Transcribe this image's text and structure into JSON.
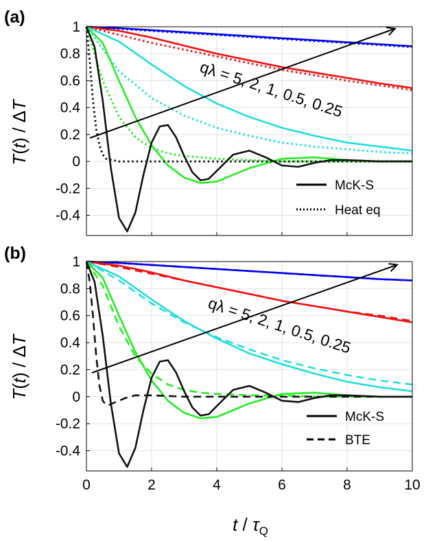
{
  "chart_data": [
    {
      "panel_label": "(a)",
      "type": "line",
      "ylabel": "T(t) / ΔT",
      "xlim": [
        0,
        10
      ],
      "ylim": [
        -0.55,
        1.0
      ],
      "xticks": [
        0,
        2,
        4,
        6,
        8,
        10
      ],
      "xtick_labels": [
        "",
        "",
        "",
        "",
        "",
        ""
      ],
      "yticks": [
        1,
        0.8,
        0.6,
        0.4,
        0.2,
        0,
        -0.2,
        -0.4
      ],
      "ytick_labels": [
        "1",
        "0.8",
        "0.6",
        "0.4",
        "0.2",
        "0",
        "-0.2",
        "-0.4"
      ],
      "grid": true,
      "legend_position": "bottom-right",
      "legend": [
        {
          "label": "McK-S",
          "style": "solid"
        },
        {
          "label": "Heat eq",
          "style": "dotted"
        }
      ],
      "annotation": "qλ = 5, 2, 1, 0.5, 0.25",
      "series": [
        {
          "q_lambda": 0.25,
          "color": "#0000ee",
          "style": "solid",
          "x": [
            0,
            1,
            2,
            3,
            4,
            5,
            6,
            7,
            8,
            9,
            10
          ],
          "y": [
            1,
            0.99,
            0.975,
            0.96,
            0.945,
            0.93,
            0.915,
            0.9,
            0.885,
            0.87,
            0.855
          ]
        },
        {
          "q_lambda": 0.25,
          "color": "#0000ee",
          "style": "dotted",
          "x": [
            0,
            1,
            2,
            3,
            4,
            5,
            6,
            7,
            8,
            9,
            10
          ],
          "y": [
            1,
            0.985,
            0.97,
            0.955,
            0.94,
            0.925,
            0.91,
            0.895,
            0.88,
            0.865,
            0.85
          ]
        },
        {
          "q_lambda": 0.5,
          "color": "#ee1111",
          "style": "solid",
          "x": [
            0,
            1,
            2,
            3,
            4,
            5,
            6,
            7,
            8,
            9,
            10
          ],
          "y": [
            1,
            0.97,
            0.92,
            0.86,
            0.8,
            0.75,
            0.7,
            0.66,
            0.62,
            0.58,
            0.545
          ]
        },
        {
          "q_lambda": 0.5,
          "color": "#ee1111",
          "style": "dotted",
          "x": [
            0,
            1,
            2,
            3,
            4,
            5,
            6,
            7,
            8,
            9,
            10
          ],
          "y": [
            1,
            0.94,
            0.88,
            0.83,
            0.78,
            0.73,
            0.68,
            0.64,
            0.6,
            0.565,
            0.53
          ]
        },
        {
          "q_lambda": 1,
          "color": "#22dddd",
          "style": "solid",
          "x": [
            0,
            1,
            2,
            3,
            4,
            5,
            6,
            7,
            8,
            9,
            10
          ],
          "y": [
            1,
            0.89,
            0.72,
            0.56,
            0.43,
            0.33,
            0.25,
            0.19,
            0.14,
            0.11,
            0.08
          ]
        },
        {
          "q_lambda": 1,
          "color": "#22dddd",
          "style": "dotted",
          "x": [
            0,
            1,
            2,
            3,
            4,
            5,
            6,
            7,
            8,
            9,
            10
          ],
          "y": [
            1,
            0.67,
            0.47,
            0.34,
            0.25,
            0.19,
            0.14,
            0.11,
            0.09,
            0.07,
            0.06
          ]
        },
        {
          "q_lambda": 2,
          "color": "#22ee22",
          "style": "solid",
          "x": [
            0,
            0.5,
            1,
            1.5,
            2,
            2.5,
            3,
            3.5,
            4,
            4.5,
            5,
            6,
            7,
            8,
            9,
            10
          ],
          "y": [
            1,
            0.88,
            0.6,
            0.33,
            0.12,
            -0.03,
            -0.12,
            -0.16,
            -0.15,
            -0.1,
            -0.05,
            0.02,
            0.03,
            0.01,
            0,
            0
          ]
        },
        {
          "q_lambda": 2,
          "color": "#22ee22",
          "style": "dotted",
          "x": [
            0,
            0.5,
            1,
            1.5,
            2,
            2.5,
            3,
            4,
            5,
            6,
            7,
            8,
            9,
            10
          ],
          "y": [
            1,
            0.6,
            0.33,
            0.18,
            0.1,
            0.06,
            0.04,
            0.02,
            0.01,
            0,
            0,
            0,
            0,
            0
          ]
        },
        {
          "q_lambda": 5,
          "color": "#111111",
          "style": "solid",
          "x": [
            0,
            0.25,
            0.5,
            0.75,
            1,
            1.25,
            1.5,
            1.75,
            2,
            2.25,
            2.5,
            2.75,
            3,
            3.25,
            3.5,
            3.75,
            4,
            4.5,
            5,
            5.5,
            6,
            6.5,
            7,
            7.5,
            8,
            9,
            10
          ],
          "y": [
            1,
            0.85,
            0.45,
            -0.05,
            -0.42,
            -0.52,
            -0.38,
            -0.1,
            0.14,
            0.26,
            0.27,
            0.18,
            0.04,
            -0.08,
            -0.14,
            -0.13,
            -0.07,
            0.05,
            0.08,
            0.03,
            -0.03,
            -0.04,
            -0.01,
            0.01,
            0.01,
            0,
            0
          ]
        },
        {
          "q_lambda": 5,
          "color": "#111111",
          "style": "dotted",
          "x": [
            0,
            0.1,
            0.2,
            0.3,
            0.4,
            0.5,
            0.6,
            0.8,
            1,
            2,
            4,
            6,
            8,
            10
          ],
          "y": [
            1,
            0.75,
            0.45,
            0.24,
            0.12,
            0.05,
            0.02,
            0.01,
            0,
            0,
            0,
            0,
            0,
            0
          ]
        }
      ]
    },
    {
      "panel_label": "(b)",
      "type": "line",
      "ylabel": "T(t) / ΔT",
      "xlabel": "t / τQ",
      "xlim": [
        0,
        10
      ],
      "ylim": [
        -0.55,
        1.0
      ],
      "xticks": [
        0,
        2,
        4,
        6,
        8,
        10
      ],
      "xtick_labels": [
        "0",
        "2",
        "4",
        "6",
        "8",
        "10"
      ],
      "yticks": [
        1,
        0.8,
        0.6,
        0.4,
        0.2,
        0,
        -0.2,
        -0.4
      ],
      "ytick_labels": [
        "1",
        "0.8",
        "0.6",
        "0.4",
        "0.2",
        "0",
        "-0.2",
        "-0.4"
      ],
      "grid": true,
      "legend_position": "bottom-right",
      "legend": [
        {
          "label": "McK-S",
          "style": "solid"
        },
        {
          "label": "BTE",
          "style": "dashed"
        }
      ],
      "annotation": "qλ = 5, 2, 1, 0.5, 0.25",
      "series": [
        {
          "q_lambda": 0.25,
          "color": "#0000ee",
          "style": "solid",
          "x": [
            0,
            1,
            2,
            3,
            4,
            5,
            6,
            7,
            8,
            9,
            10
          ],
          "y": [
            1,
            0.99,
            0.975,
            0.96,
            0.945,
            0.93,
            0.915,
            0.9,
            0.885,
            0.87,
            0.86
          ]
        },
        {
          "q_lambda": 0.25,
          "color": "#0000ee",
          "style": "dashed",
          "x": [
            0,
            1,
            2,
            3,
            4,
            5,
            6,
            7,
            8,
            9,
            10
          ],
          "y": [
            1,
            0.99,
            0.975,
            0.96,
            0.945,
            0.93,
            0.915,
            0.9,
            0.885,
            0.87,
            0.86
          ]
        },
        {
          "q_lambda": 0.5,
          "color": "#ee1111",
          "style": "solid",
          "x": [
            0,
            1,
            2,
            3,
            4,
            5,
            6,
            7,
            8,
            9,
            10
          ],
          "y": [
            1,
            0.97,
            0.92,
            0.86,
            0.81,
            0.76,
            0.71,
            0.67,
            0.63,
            0.59,
            0.55
          ]
        },
        {
          "q_lambda": 0.5,
          "color": "#ee1111",
          "style": "dashed",
          "x": [
            0,
            1,
            2,
            3,
            4,
            5,
            6,
            7,
            8,
            9,
            10
          ],
          "y": [
            1,
            0.96,
            0.91,
            0.86,
            0.81,
            0.76,
            0.71,
            0.67,
            0.63,
            0.6,
            0.56
          ]
        },
        {
          "q_lambda": 1,
          "color": "#22dddd",
          "style": "solid",
          "x": [
            0,
            1,
            2,
            3,
            4,
            5,
            6,
            7,
            8,
            9,
            10
          ],
          "y": [
            1,
            0.89,
            0.72,
            0.56,
            0.43,
            0.32,
            0.24,
            0.17,
            0.11,
            0.07,
            0.04
          ]
        },
        {
          "q_lambda": 1,
          "color": "#22dddd",
          "style": "dashed",
          "x": [
            0,
            1,
            2,
            3,
            4,
            5,
            6,
            7,
            8,
            9,
            10
          ],
          "y": [
            1,
            0.86,
            0.69,
            0.55,
            0.44,
            0.35,
            0.27,
            0.21,
            0.16,
            0.12,
            0.09
          ]
        },
        {
          "q_lambda": 2,
          "color": "#22ee22",
          "style": "solid",
          "x": [
            0,
            0.5,
            1,
            1.5,
            2,
            2.5,
            3,
            3.5,
            4,
            4.5,
            5,
            6,
            7,
            8,
            9,
            10
          ],
          "y": [
            1,
            0.88,
            0.6,
            0.33,
            0.12,
            -0.03,
            -0.12,
            -0.16,
            -0.15,
            -0.1,
            -0.05,
            0.02,
            0.03,
            0.01,
            0,
            0
          ]
        },
        {
          "q_lambda": 2,
          "color": "#22ee22",
          "style": "dashed",
          "x": [
            0,
            0.5,
            1,
            1.5,
            2,
            2.5,
            3,
            3.5,
            4,
            5,
            6,
            7,
            8,
            9,
            10
          ],
          "y": [
            1,
            0.82,
            0.52,
            0.3,
            0.17,
            0.09,
            0.05,
            0.03,
            0.02,
            0.01,
            0.01,
            0,
            0,
            0,
            0
          ]
        },
        {
          "q_lambda": 5,
          "color": "#111111",
          "style": "solid",
          "x": [
            0,
            0.25,
            0.5,
            0.75,
            1,
            1.25,
            1.5,
            1.75,
            2,
            2.25,
            2.5,
            2.75,
            3,
            3.25,
            3.5,
            3.75,
            4,
            4.5,
            5,
            5.5,
            6,
            6.5,
            7,
            7.5,
            8,
            9,
            10
          ],
          "y": [
            1,
            0.85,
            0.45,
            -0.05,
            -0.42,
            -0.52,
            -0.38,
            -0.1,
            0.14,
            0.26,
            0.27,
            0.18,
            0.04,
            -0.08,
            -0.14,
            -0.13,
            -0.07,
            0.05,
            0.08,
            0.03,
            -0.03,
            -0.04,
            -0.01,
            0.01,
            0.01,
            0,
            0
          ]
        },
        {
          "q_lambda": 5,
          "color": "#111111",
          "style": "dashed",
          "x": [
            0,
            0.1,
            0.2,
            0.3,
            0.4,
            0.5,
            0.6,
            0.7,
            0.8,
            1,
            1.2,
            1.5,
            2,
            3,
            4,
            5,
            6,
            8,
            10
          ],
          "y": [
            1,
            0.85,
            0.6,
            0.3,
            0.08,
            -0.03,
            -0.06,
            -0.06,
            -0.05,
            -0.03,
            -0.01,
            0.01,
            0.01,
            0,
            0,
            0,
            0,
            0,
            0
          ]
        }
      ]
    }
  ]
}
